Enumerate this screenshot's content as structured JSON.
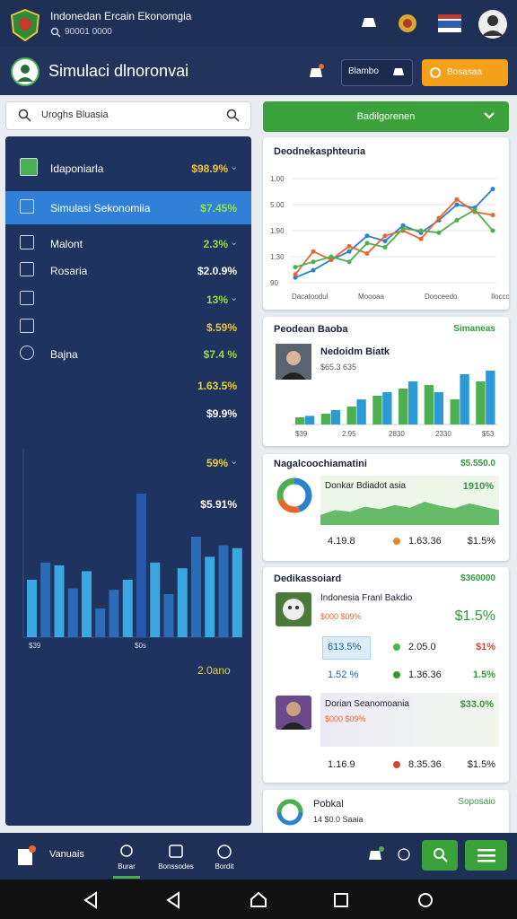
{
  "header": {
    "title": "Indonedan Ercain Ekonomgia",
    "subtitle": "90001 0000"
  },
  "toolbar": {
    "title": "Simulaci dlnoronvai",
    "button_secondary": "Blambo",
    "button_primary": "Bosasaa"
  },
  "search": {
    "placeholder": "Uroghs Bluasia"
  },
  "dropdown": {
    "label": "Badilgorenen"
  },
  "sidebar": {
    "items": [
      {
        "label": "Idaponiarla",
        "value": "$98.9%"
      },
      {
        "label": "Simulasi Sekonomiia",
        "value": "$7.45%"
      },
      {
        "label": "Malont",
        "value": "2.3%"
      },
      {
        "label": "Rosaria",
        "value": "$2.0.9%"
      },
      {
        "value": "13%"
      },
      {
        "value": "$.59%"
      },
      {
        "label": "Bajna",
        "value": "$7.4 %"
      },
      {
        "value": "1.63.5%"
      },
      {
        "value": "$9.9%"
      },
      {
        "value": "59%"
      },
      {
        "value": "$5.91%"
      }
    ],
    "chart": {
      "type": "bar",
      "ylim": [
        0,
        100
      ],
      "values": [
        40,
        52,
        50,
        34,
        46,
        20,
        33,
        40,
        100,
        52,
        30,
        48,
        70,
        56,
        64,
        62
      ],
      "colors": [
        "#3ba7e0",
        "#2b6cb8",
        "#3ba7e0",
        "#2b6cb8",
        "#3ba7e0",
        "#2b6cb8",
        "#2b6cb8",
        "#3ba7e0",
        "#2657a8",
        "#3ba7e0",
        "#2b6cb8",
        "#3ba7e0",
        "#2b6cb8",
        "#3ba7e0",
        "#2b6cb8",
        "#3ba7e0"
      ],
      "x_labels": [
        "$39",
        "$0s"
      ]
    },
    "footer": "2.0ano"
  },
  "cards": [
    {
      "title": "Deodnekasphteuria",
      "chart": {
        "type": "line",
        "ylim": [
          0,
          100
        ],
        "y_labels": [
          "1.00",
          "5.00",
          "1.90",
          "1.30",
          "90"
        ],
        "x_labels": [
          "Dacatoodul",
          "Moooaa",
          "Dooceedo",
          "Iloccoo"
        ],
        "series": [
          {
            "color": "#2d7fd0",
            "values": [
              5,
              12,
              22,
              30,
              45,
              40,
              55,
              48,
              60,
              75,
              72,
              90
            ]
          },
          {
            "color": "#e8662e",
            "values": [
              8,
              30,
              22,
              35,
              28,
              45,
              50,
              42,
              62,
              80,
              68,
              65
            ]
          },
          {
            "color": "#4cb050",
            "values": [
              15,
              20,
              25,
              20,
              38,
              34,
              52,
              50,
              48,
              60,
              70,
              50
            ]
          }
        ]
      }
    },
    {
      "title": "Peodean Baoba",
      "badge": "Simaneas",
      "name": "Nedoidm Biatk",
      "detail": "$65.3 635",
      "chart": {
        "type": "bar",
        "ylim": [
          0,
          100
        ],
        "x_labels": [
          "$39",
          "2.95",
          "2830",
          "2330",
          "$53"
        ],
        "series": [
          {
            "color": "#4cb050",
            "values": [
              10,
              15,
              25,
              40,
              50,
              55,
              35,
              60
            ]
          },
          {
            "color": "#2d9ad8",
            "values": [
              12,
              20,
              35,
              45,
              60,
              45,
              70,
              75
            ]
          }
        ]
      }
    },
    {
      "title": "Nagalcoochiamatini",
      "badge": "$5.550.0",
      "donut": {
        "values": [
          45,
          25,
          30
        ],
        "colors": [
          "#2d7fd0",
          "#e8662e",
          "#4cb050"
        ]
      },
      "panel_title": "Donkar Bdiadot asia",
      "panel_value": "1910%",
      "area": {
        "ylim": [
          0,
          100
        ],
        "color": "#4cb050",
        "values": [
          30,
          45,
          40,
          55,
          48,
          60,
          52,
          70,
          58,
          50,
          65,
          55,
          45
        ]
      },
      "stats": [
        "4.19.8",
        "1.63.36",
        "$1.5%"
      ]
    },
    {
      "title": "Dedikassoiard",
      "badge": "$360000",
      "name": "Indonesia Franl Bakdio",
      "detail": "$000 $09%",
      "value": "$1.5%",
      "rows": [
        [
          "613.5%",
          "2.05.0",
          "$1%"
        ],
        [
          "1.52 %",
          "1.36.36",
          "1.5%"
        ]
      ],
      "name2": "Dorian Seanomoania",
      "value2": "$33.0%",
      "detail2": "$000 $09%",
      "stats": [
        "1.16.9",
        "8.35.36",
        "$1.5%"
      ]
    },
    {
      "title": "Pobkal",
      "badge": "Soposaio",
      "detail": "14 $0.0 Saaia"
    }
  ],
  "bottom_nav": {
    "brand": "Vanuais",
    "tabs": [
      "Burar",
      "Bonssodes",
      "Bordit"
    ]
  }
}
